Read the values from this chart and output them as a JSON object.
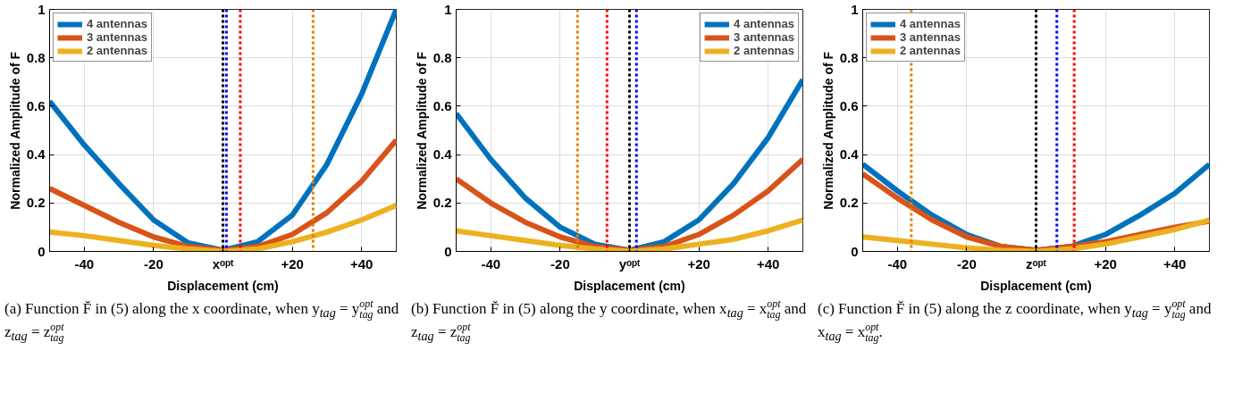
{
  "chart_data": [
    {
      "type": "line",
      "xlabel": "Displacement (cm)",
      "ylabel": "Normalized Amplitude of F",
      "x": [
        -50,
        -40,
        -30,
        -20,
        -10,
        0,
        10,
        20,
        30,
        40,
        50
      ],
      "xlim": [
        -50,
        50
      ],
      "xticks": [
        -40,
        -20,
        {
          "value": 0,
          "label": "xᵒᵖᵗ"
        },
        {
          "value": 20,
          "label": "+20"
        },
        {
          "value": 40,
          "label": "+40"
        }
      ],
      "ylim": [
        0,
        1
      ],
      "yticks": [
        0,
        0.2,
        0.4,
        0.6,
        0.8,
        1
      ],
      "grid": true,
      "legend": "top left",
      "line_style": "solid",
      "series": [
        {
          "name": "4 antennas",
          "color": "#0072bd",
          "values": [
            0.62,
            0.44,
            0.28,
            0.13,
            0.035,
            0.005,
            0.04,
            0.15,
            0.36,
            0.65,
            1.0
          ]
        },
        {
          "name": "3 antennas",
          "color": "#d95319",
          "values": [
            0.26,
            0.19,
            0.12,
            0.06,
            0.02,
            0.005,
            0.02,
            0.07,
            0.16,
            0.29,
            0.46
          ]
        },
        {
          "name": "2 antennas",
          "color": "#edb120",
          "values": [
            0.08,
            0.065,
            0.045,
            0.025,
            0.01,
            0,
            0.01,
            0.04,
            0.08,
            0.13,
            0.19
          ]
        }
      ],
      "ref_lines": [
        {
          "axis": "x",
          "value": 0,
          "color": "#000000",
          "line_style": "dotted"
        },
        {
          "axis": "x",
          "value": 1,
          "color": "#0000ff",
          "line_style": "dotted"
        },
        {
          "axis": "x",
          "value": 5,
          "color": "#ff0000",
          "line_style": "dotted"
        },
        {
          "axis": "x",
          "value": 26,
          "color": "#e08000",
          "line_style": "dotted"
        }
      ],
      "annotations": [
        "(a) Function F̆ in (5) along the x coordinate, when y$_{tag}$ = y$^{opt}$$_{tag}$ and z$_{tag}$ = z$^{opt}$$_{tag}$"
      ]
    },
    {
      "type": "line",
      "xlabel": "Displacement (cm)",
      "ylabel": "Normalized Amplitude of F",
      "x": [
        -50,
        -40,
        -30,
        -20,
        -10,
        0,
        10,
        20,
        30,
        40,
        50
      ],
      "xlim": [
        -50,
        50
      ],
      "xticks": [
        -40,
        -20,
        {
          "value": 0,
          "label": "yᵒᵖᵗ"
        },
        {
          "value": 20,
          "label": "+20"
        },
        {
          "value": 40,
          "label": "+40"
        }
      ],
      "ylim": [
        0,
        1
      ],
      "yticks": [
        0,
        0.2,
        0.4,
        0.6,
        0.8,
        1
      ],
      "grid": true,
      "legend": "top right",
      "line_style": "solid",
      "series": [
        {
          "name": "4 antennas",
          "color": "#0072bd",
          "values": [
            0.57,
            0.38,
            0.22,
            0.1,
            0.03,
            0.005,
            0.04,
            0.13,
            0.28,
            0.47,
            0.71
          ]
        },
        {
          "name": "3 antennas",
          "color": "#d95319",
          "values": [
            0.3,
            0.2,
            0.12,
            0.06,
            0.02,
            0.005,
            0.02,
            0.07,
            0.15,
            0.25,
            0.38
          ]
        },
        {
          "name": "2 antennas",
          "color": "#edb120",
          "values": [
            0.085,
            0.065,
            0.045,
            0.025,
            0.01,
            0,
            0.01,
            0.03,
            0.05,
            0.085,
            0.13
          ]
        }
      ],
      "ref_lines": [
        {
          "axis": "x",
          "value": -15,
          "color": "#e08000",
          "line_style": "dotted"
        },
        {
          "axis": "x",
          "value": -6.5,
          "color": "#ff0000",
          "line_style": "dotted"
        },
        {
          "axis": "x",
          "value": 0,
          "color": "#000000",
          "line_style": "dotted"
        },
        {
          "axis": "x",
          "value": 2,
          "color": "#0000ff",
          "line_style": "dotted"
        }
      ],
      "annotations": [
        "(b) Function F̆ in (5) along the y coordinate, when x$_{tag}$ = x$^{opt}$$_{tag}$ and z$_{tag}$ = z$^{opt}$$_{tag}$"
      ]
    },
    {
      "type": "line",
      "xlabel": "Displacement (cm)",
      "ylabel": "Normalized Amplitude of F",
      "x": [
        -50,
        -40,
        -30,
        -20,
        -10,
        0,
        10,
        20,
        30,
        40,
        50
      ],
      "xlim": [
        -50,
        50
      ],
      "xticks": [
        -40,
        -20,
        {
          "value": 0,
          "label": "zᵒᵖᵗ"
        },
        {
          "value": 20,
          "label": "+20"
        },
        {
          "value": 40,
          "label": "+40"
        }
      ],
      "ylim": [
        0,
        1
      ],
      "yticks": [
        0,
        0.2,
        0.4,
        0.6,
        0.8,
        1
      ],
      "grid": true,
      "legend": "top left",
      "line_style": "solid",
      "series": [
        {
          "name": "4 antennas",
          "color": "#0072bd",
          "values": [
            0.36,
            0.25,
            0.15,
            0.07,
            0.02,
            0.005,
            0.02,
            0.07,
            0.15,
            0.24,
            0.36
          ]
        },
        {
          "name": "3 antennas",
          "color": "#d95319",
          "values": [
            0.32,
            0.22,
            0.13,
            0.06,
            0.02,
            0.005,
            0.02,
            0.04,
            0.07,
            0.1,
            0.125
          ]
        },
        {
          "name": "2 antennas",
          "color": "#edb120",
          "values": [
            0.06,
            0.045,
            0.03,
            0.015,
            0.005,
            0,
            0.01,
            0.03,
            0.06,
            0.09,
            0.13
          ]
        }
      ],
      "ref_lines": [
        {
          "axis": "x",
          "value": -36,
          "color": "#e08000",
          "line_style": "dotted"
        },
        {
          "axis": "x",
          "value": 0,
          "color": "#000000",
          "line_style": "dotted"
        },
        {
          "axis": "x",
          "value": 6,
          "color": "#0000ff",
          "line_style": "dotted"
        },
        {
          "axis": "x",
          "value": 11,
          "color": "#ff0000",
          "line_style": "dotted"
        }
      ],
      "annotations": [
        "(c) Function F̆ in (5) along the z coordinate, when y$_{tag}$ = y$^{opt}$$_{tag}$ and x$_{tag}$ = x$^{opt}$$_{tag}$."
      ]
    }
  ]
}
